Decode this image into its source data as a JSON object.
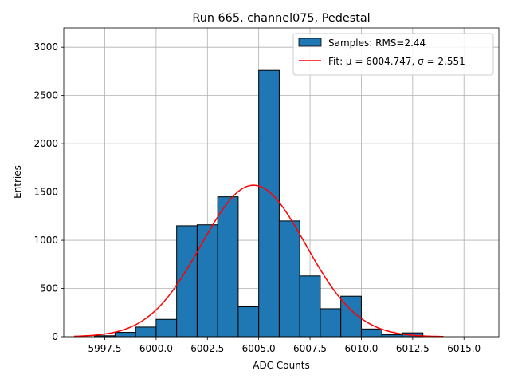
{
  "chart_data": {
    "type": "bar",
    "title": "Run 665, channel075, Pedestal",
    "xlabel": "ADC Counts",
    "ylabel": "Entries",
    "xlim": [
      5995.5,
      6016.7
    ],
    "ylim": [
      0,
      3200
    ],
    "xticks": [
      5997.5,
      6000.0,
      6002.5,
      6005.0,
      6007.5,
      6010.0,
      6012.5,
      6015.0
    ],
    "xtick_labels": [
      "5997.5",
      "6000.0",
      "6002.5",
      "6005.0",
      "6007.5",
      "6010.0",
      "6012.5",
      "6015.0"
    ],
    "yticks": [
      0,
      500,
      1000,
      1500,
      2000,
      2500,
      3000
    ],
    "ytick_labels": [
      "0",
      "500",
      "1000",
      "1500",
      "2000",
      "2500",
      "3000"
    ],
    "grid": true,
    "legend_position": "top-right",
    "histogram": {
      "name": "Samples: RMS=2.44",
      "color": "#1f77b4",
      "edge_color": "#000000",
      "bin_edges": [
        5997.0,
        5998.0,
        5999.0,
        6000.0,
        6001.0,
        6002.0,
        6003.0,
        6004.0,
        6005.0,
        6006.0,
        6007.0,
        6008.0,
        6009.0,
        6010.0,
        6011.0,
        6012.0,
        6013.0
      ],
      "counts": [
        10,
        45,
        100,
        180,
        1150,
        1160,
        1450,
        310,
        2760,
        1200,
        630,
        290,
        420,
        80,
        20,
        40
      ]
    },
    "fit": {
      "name": "Fit: μ = 6004.747, σ = 2.551",
      "color": "#ff0000",
      "mu": 6004.747,
      "sigma": 2.551,
      "amplitude": 1570,
      "x_range": [
        5996.0,
        6014.0
      ]
    }
  }
}
